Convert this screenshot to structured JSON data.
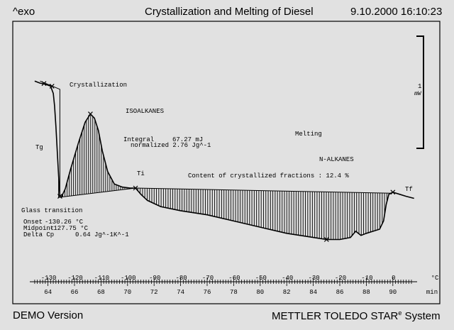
{
  "header": {
    "exo_label": "^exo",
    "title": "Crystallization and Melting of Diesel",
    "datetime": "9.10.2000 16:10:23"
  },
  "footer": {
    "left": "DEMO Version",
    "right_brand": "METTLER  TOLEDO  STAR",
    "right_super": "e",
    "right_tail": " System"
  },
  "chart_data": {
    "type": "line",
    "title": "Crystallization and Melting of Diesel",
    "x_time": {
      "unit": "min",
      "range": [
        63,
        92
      ],
      "ticks": [
        64,
        66,
        68,
        70,
        72,
        74,
        76,
        78,
        80,
        82,
        84,
        86,
        88,
        90
      ]
    },
    "x_temperature": {
      "unit": "°C",
      "ticks": [
        -130,
        -120,
        -110,
        -100,
        -90,
        -80,
        -70,
        -60,
        -50,
        -40,
        -30,
        -20,
        -10,
        0
      ]
    },
    "scale_bar": {
      "value": "1",
      "unit": "mW"
    },
    "series": [
      {
        "curve": [
          [
            63.0,
            5.2
          ],
          [
            63.4,
            5.1
          ],
          [
            63.8,
            5.05
          ],
          [
            64.2,
            4.95
          ],
          [
            64.4,
            4.6
          ],
          [
            64.5,
            4.0
          ],
          [
            64.6,
            3.0
          ],
          [
            64.7,
            1.8
          ],
          [
            64.8,
            0.6
          ],
          [
            64.9,
            -0.4
          ],
          [
            65.0,
            -0.45
          ],
          [
            65.3,
            -0.05
          ],
          [
            65.7,
            0.9
          ],
          [
            66.3,
            2.2
          ],
          [
            66.8,
            3.2
          ],
          [
            67.2,
            3.6
          ],
          [
            67.5,
            3.4
          ],
          [
            67.8,
            2.8
          ],
          [
            68.1,
            1.8
          ],
          [
            68.5,
            0.8
          ],
          [
            69.0,
            0.2
          ],
          [
            69.6,
            0.05
          ],
          [
            70.2,
            0.0
          ],
          [
            70.6,
            0.0
          ],
          [
            71.0,
            -0.3
          ],
          [
            71.5,
            -0.6
          ],
          [
            72.5,
            -0.9
          ],
          [
            74.0,
            -1.1
          ],
          [
            76.0,
            -1.3
          ],
          [
            78.0,
            -1.6
          ],
          [
            80.0,
            -1.9
          ],
          [
            82.0,
            -2.2
          ],
          [
            84.0,
            -2.4
          ],
          [
            85.0,
            -2.5
          ],
          [
            86.0,
            -2.5
          ],
          [
            86.8,
            -2.4
          ],
          [
            87.2,
            -2.1
          ],
          [
            87.6,
            -2.3
          ],
          [
            88.0,
            -2.2
          ],
          [
            88.5,
            -2.1
          ],
          [
            89.0,
            -2.0
          ],
          [
            89.3,
            -1.6
          ],
          [
            89.5,
            -0.8
          ],
          [
            89.7,
            -0.3
          ],
          [
            90.0,
            -0.2
          ],
          [
            90.5,
            -0.3
          ],
          [
            91.0,
            -0.4
          ],
          [
            91.6,
            -0.5
          ]
        ]
      }
    ],
    "crystallization_baseline": [
      [
        64.8,
        -0.45
      ],
      [
        70.6,
        0.0
      ]
    ],
    "melting_baseline": [
      [
        70.6,
        0.0
      ],
      [
        89.9,
        -0.25
      ]
    ],
    "glass_tangent": [
      [
        63.4,
        5.2
      ],
      [
        64.9,
        4.8
      ],
      [
        64.9,
        -0.45
      ]
    ],
    "points": {
      "glass_onset": [
        63.7,
        5.08
      ],
      "glass_mid": [
        64.3,
        4.95
      ],
      "crystallization_start": [
        64.9,
        -0.4
      ],
      "crystallization_peak": [
        67.2,
        3.6
      ],
      "Ti": [
        70.6,
        0.0
      ],
      "melting_peak": [
        85.0,
        -2.5
      ],
      "Tf": [
        90.0,
        -0.2
      ]
    },
    "annotations": {
      "tg": "Tg",
      "crystallization": "Crystallization",
      "isoalkanes": "ISOALKANES",
      "integral_label": "Integral",
      "integral_value": "67.27 mJ",
      "normalized": "normalized 2.76 Jg^-1",
      "melting": "Melting",
      "n_alkanes": "N-ALKANES",
      "ti": "Ti",
      "content": "Content of crystallized fractions : 12.4 %",
      "tf": "Tf",
      "glass_transition": "Glass transition",
      "onset_label": "Onset",
      "onset_value": "-130.26 °C",
      "midpoint_label": "Midpoint",
      "midpoint_value": "-127.75 °C",
      "delta_cp_label": "Delta Cp",
      "delta_cp_value": "0.64 Jg^-1K^-1"
    }
  }
}
